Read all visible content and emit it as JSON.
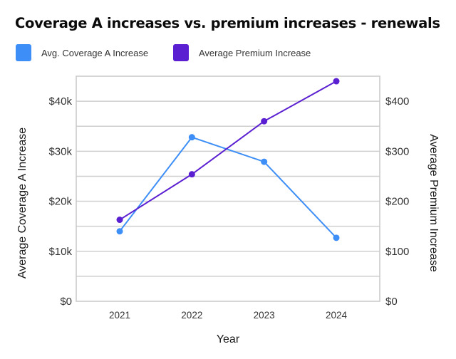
{
  "chart_data": {
    "type": "line",
    "title": "Coverage A increases vs. premium increases - renewals",
    "xlabel": "Year",
    "ylabel_left": "Average Coverage A Increase",
    "ylabel_right": "Average Premium Increase",
    "categories": [
      "2021",
      "2022",
      "2023",
      "2024"
    ],
    "y_left": {
      "range": [
        0,
        45000
      ],
      "ticks": [
        0,
        10000,
        20000,
        30000,
        40000
      ],
      "tick_labels": [
        "$0",
        "$10k",
        "$20k",
        "$30k",
        "$40k"
      ],
      "gridline_step": 5000
    },
    "y_right": {
      "range": [
        0,
        450
      ],
      "ticks": [
        0,
        100,
        200,
        300,
        400
      ],
      "tick_labels": [
        "$0",
        "$100",
        "$200",
        "$300",
        "$400"
      ]
    },
    "grid": true,
    "legend_position": "top-left",
    "series": [
      {
        "name": "Avg. Coverage A Increase",
        "axis": "left",
        "color": "#3d8ef7",
        "values": [
          14000,
          32800,
          27900,
          12700
        ]
      },
      {
        "name": "Average Premium Increase",
        "axis": "right",
        "color": "#5a1fd1",
        "values": [
          163,
          254,
          360,
          440
        ]
      }
    ]
  }
}
